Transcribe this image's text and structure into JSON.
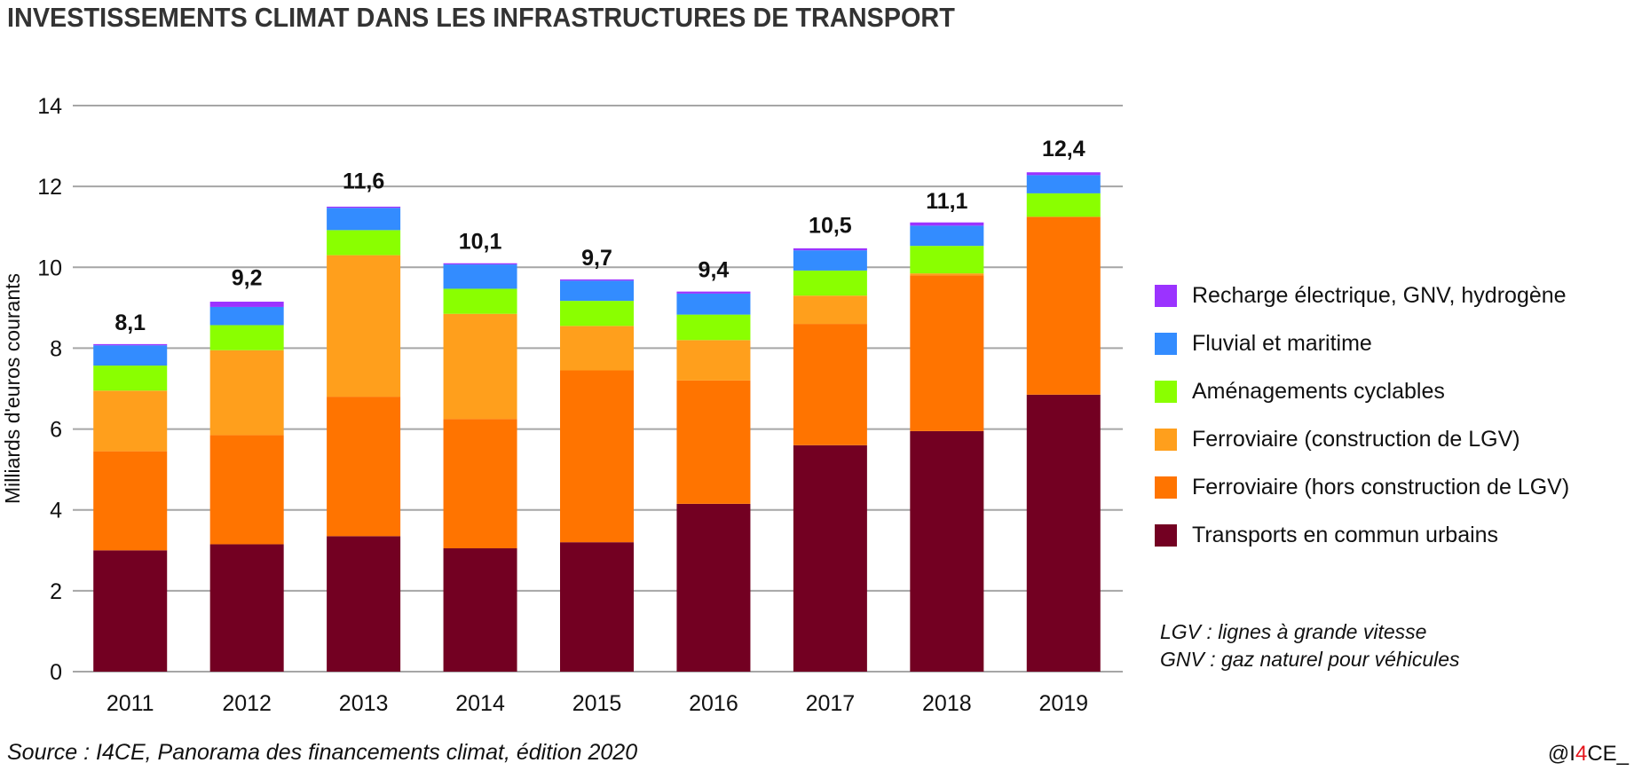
{
  "header": {
    "title": "INVESTISSEMENTS CLIMAT DANS LES INFRASTRUCTURES DE TRANSPORT"
  },
  "chart_data": {
    "type": "bar",
    "stacked": true,
    "title": "INVESTISSEMENTS CLIMAT DANS LES INFRASTRUCTURES DE TRANSPORT",
    "xlabel": "",
    "ylabel": "Milliards d'euros courants",
    "ylim": [
      0,
      14
    ],
    "yticks": [
      0,
      2,
      4,
      6,
      8,
      10,
      12,
      14
    ],
    "grid": true,
    "legend_position": "right",
    "categories": [
      "2011",
      "2012",
      "2013",
      "2014",
      "2015",
      "2016",
      "2017",
      "2018",
      "2019"
    ],
    "totals_labels": [
      "8,1",
      "9,2",
      "11,6",
      "10,1",
      "9,7",
      "9,4",
      "10,5",
      "11,1",
      "12,4"
    ],
    "totals": [
      8.1,
      9.2,
      11.6,
      10.1,
      9.7,
      9.4,
      10.5,
      11.1,
      12.4
    ],
    "series": [
      {
        "name": "Transports en commun urbains",
        "color": "#730022",
        "values": [
          3.0,
          3.15,
          3.35,
          3.05,
          3.2,
          4.15,
          5.6,
          5.95,
          6.85
        ]
      },
      {
        "name": "Ferroviaire (hors construction de LGV)",
        "color": "#ff7400",
        "values": [
          2.45,
          2.7,
          3.45,
          3.2,
          4.25,
          3.05,
          3.0,
          3.85,
          4.4
        ]
      },
      {
        "name": "Ferroviaire (construction de LGV)",
        "color": "#ff9f1c",
        "values": [
          1.5,
          2.1,
          3.5,
          2.6,
          1.1,
          1.0,
          0.7,
          0.05,
          0.0
        ]
      },
      {
        "name": "Aménagements cyclables",
        "color": "#8aff00",
        "values": [
          0.62,
          0.62,
          0.62,
          0.62,
          0.62,
          0.63,
          0.62,
          0.68,
          0.58
        ]
      },
      {
        "name": "Fluvial et maritime",
        "color": "#338cff",
        "values": [
          0.5,
          0.45,
          0.55,
          0.6,
          0.5,
          0.52,
          0.5,
          0.5,
          0.45
        ]
      },
      {
        "name": "Recharge électrique, GNV, hydrogène",
        "color": "#9b33ff",
        "values": [
          0.03,
          0.13,
          0.03,
          0.03,
          0.03,
          0.05,
          0.05,
          0.08,
          0.07
        ]
      }
    ]
  },
  "legend": {
    "items": [
      {
        "label": "Recharge électrique, GNV, hydrogène",
        "color": "#9b33ff"
      },
      {
        "label": "Fluvial et maritime",
        "color": "#338cff"
      },
      {
        "label": "Aménagements cyclables",
        "color": "#8aff00"
      },
      {
        "label": "Ferroviaire (construction de LGV)",
        "color": "#ff9f1c"
      },
      {
        "label": "Ferroviaire (hors construction de LGV)",
        "color": "#ff7400"
      },
      {
        "label": "Transports en commun urbains",
        "color": "#730022"
      }
    ]
  },
  "notes": {
    "line1": "LGV : lignes à grande vitesse",
    "line2": "GNV : gaz naturel pour véhicules"
  },
  "footer": {
    "source": "Source : I4CE, Panorama des financements climat, édition 2020",
    "brand_prefix": "@I",
    "brand_accent": "4",
    "brand_suffix": "CE_"
  }
}
